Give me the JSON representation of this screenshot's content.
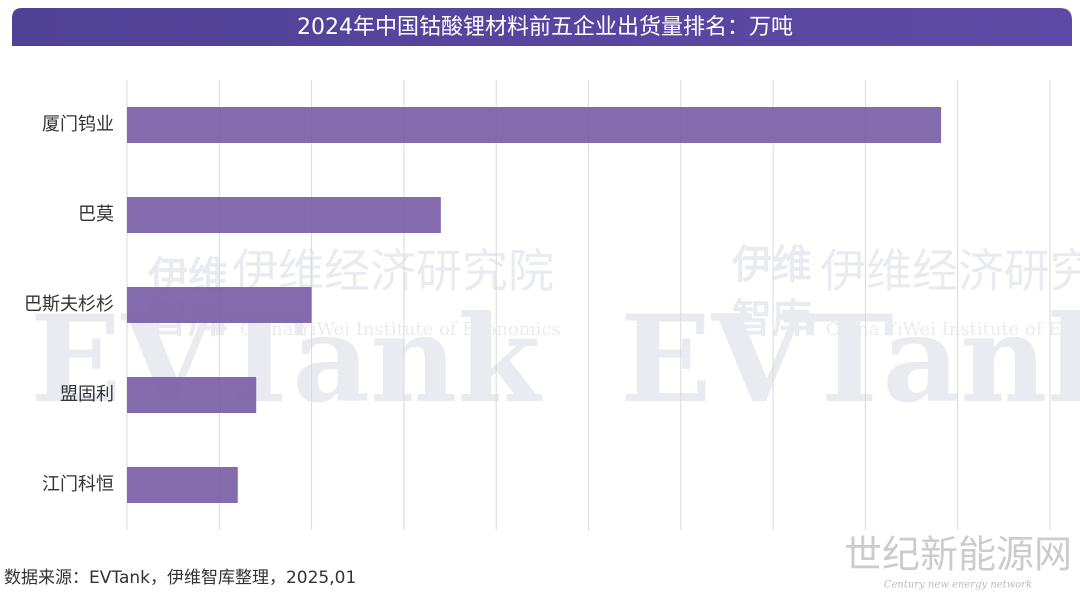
{
  "chart_data": {
    "type": "bar",
    "orientation": "horizontal",
    "title": "2024年中国钴酸锂材料前五企业出货量排名：万吨",
    "categories": [
      "厦门钨业",
      "巴莫",
      "巴斯夫杉杉",
      "盟固利",
      "江门科恒"
    ],
    "values": [
      8.82,
      3.4,
      2.0,
      1.4,
      1.2
    ],
    "color": "#7a5ea6",
    "xlim": [
      0,
      10
    ],
    "xticks": [
      0,
      1,
      2,
      3,
      4,
      5,
      6,
      7,
      8,
      9,
      10
    ],
    "grid": true,
    "source": "数据来源：EVTank，伊维智库整理，2025,01",
    "watermarks": [
      "伊维",
      "智库",
      "伊维经济研究院",
      "China YiWei Institute of Economics",
      "EVTank",
      "世纪新能源网",
      "Century new energy network"
    ]
  }
}
